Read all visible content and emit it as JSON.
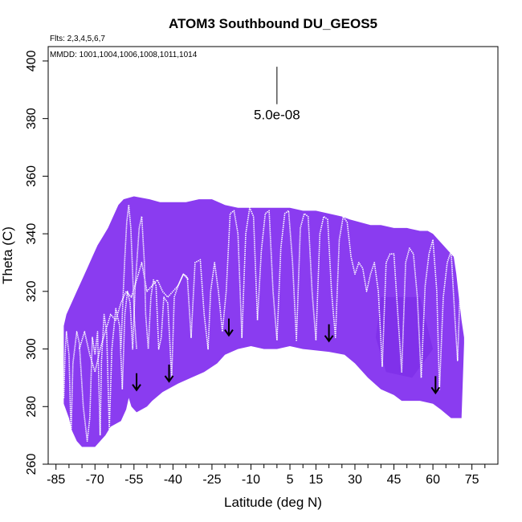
{
  "chart_data": {
    "type": "heatmap",
    "title": "ATOM3 Southbound DU_GEOS5",
    "flights_label": "Flts: 2,3,4,5,6,7",
    "dates_label": "MMDD: 1001,1004,1006,1008,1011,1014",
    "xlabel": "Latitude (deg N)",
    "ylabel": "Theta (C)",
    "xlim": [
      -88,
      85
    ],
    "ylim": [
      260,
      405
    ],
    "x_ticks": [
      -85,
      -70,
      -55,
      -40,
      -25,
      -10,
      5,
      15,
      30,
      45,
      60,
      75
    ],
    "x_minor_ticks": [
      -80,
      -75,
      -65,
      -60,
      -50,
      -45,
      -35,
      -30,
      -20,
      -15,
      -5,
      0,
      10,
      20,
      25,
      35,
      40,
      50,
      55,
      65,
      70,
      80
    ],
    "y_ticks": [
      260,
      280,
      300,
      320,
      340,
      360,
      380,
      400
    ],
    "scale_label": "5.0e-08",
    "scale_bar": {
      "x": 0,
      "y_top": 398,
      "y_bottom": 385
    },
    "colors": {
      "field": "#8a3cf0",
      "field_dark": "#7a2ae6",
      "track": "#ffffff",
      "arrow": "#000000"
    },
    "field_top": [
      [
        -82,
        308
      ],
      [
        -81,
        312
      ],
      [
        -79,
        316
      ],
      [
        -77,
        320
      ],
      [
        -75,
        324
      ],
      [
        -73,
        328
      ],
      [
        -71,
        332
      ],
      [
        -69,
        336
      ],
      [
        -67,
        339
      ],
      [
        -65,
        342
      ],
      [
        -63,
        346
      ],
      [
        -61,
        350
      ],
      [
        -59,
        352
      ],
      [
        -55,
        353
      ],
      [
        -49,
        352
      ],
      [
        -45,
        351
      ],
      [
        -40,
        351
      ],
      [
        -35,
        351
      ],
      [
        -30,
        352
      ],
      [
        -25,
        352
      ],
      [
        -20,
        350
      ],
      [
        -15,
        349
      ],
      [
        -10,
        349
      ],
      [
        -5,
        349
      ],
      [
        0,
        349
      ],
      [
        5,
        349
      ],
      [
        10,
        348
      ],
      [
        15,
        348
      ],
      [
        20,
        347
      ],
      [
        25,
        346
      ],
      [
        28,
        345
      ],
      [
        32,
        344
      ],
      [
        36,
        343
      ],
      [
        40,
        343
      ],
      [
        45,
        342
      ],
      [
        50,
        342
      ],
      [
        55,
        341
      ],
      [
        58,
        341
      ],
      [
        60,
        340
      ],
      [
        62,
        338
      ],
      [
        64,
        336
      ],
      [
        66,
        334
      ],
      [
        68,
        332
      ],
      [
        69,
        326
      ],
      [
        70,
        318
      ],
      [
        71,
        310
      ],
      [
        72,
        304
      ]
    ],
    "field_bottom": [
      [
        72,
        302
      ],
      [
        71,
        276
      ],
      [
        67,
        276
      ],
      [
        63,
        279
      ],
      [
        60,
        281
      ],
      [
        55,
        282
      ],
      [
        48,
        282
      ],
      [
        45,
        284
      ],
      [
        40,
        286
      ],
      [
        35,
        290
      ],
      [
        30,
        295
      ],
      [
        26,
        298
      ],
      [
        20,
        299
      ],
      [
        10,
        300
      ],
      [
        5,
        301
      ],
      [
        0,
        300
      ],
      [
        -5,
        300
      ],
      [
        -10,
        301
      ],
      [
        -15,
        300
      ],
      [
        -20,
        298
      ],
      [
        -23,
        295
      ],
      [
        -28,
        292
      ],
      [
        -33,
        290
      ],
      [
        -38,
        288
      ],
      [
        -44,
        285
      ],
      [
        -48,
        282
      ],
      [
        -50,
        280
      ],
      [
        -54,
        278
      ],
      [
        -56,
        280
      ],
      [
        -57,
        283
      ],
      [
        -58,
        279
      ],
      [
        -60,
        275
      ],
      [
        -64,
        273
      ],
      [
        -66,
        270
      ],
      [
        -70,
        266
      ],
      [
        -72,
        266
      ],
      [
        -75,
        266
      ],
      [
        -77,
        268
      ],
      [
        -79,
        272
      ],
      [
        -80,
        276
      ],
      [
        -82,
        281
      ],
      [
        -82,
        287
      ]
    ],
    "tracks": [
      [
        [
          -82,
          283
        ],
        [
          -81.5,
          298
        ],
        [
          -81,
          306
        ],
        [
          -80,
          298
        ],
        [
          -79.2,
          270
        ],
        [
          -78.5,
          295
        ],
        [
          -77,
          306
        ],
        [
          -76,
          302
        ],
        [
          -74.5,
          280
        ],
        [
          -73,
          268
        ],
        [
          -72,
          276
        ],
        [
          -71,
          304
        ],
        [
          -70,
          298
        ],
        [
          -69,
          306
        ],
        [
          -68,
          270
        ],
        [
          -67.5,
          296
        ],
        [
          -66.5,
          312
        ],
        [
          -65.5,
          306
        ],
        [
          -64.5,
          272
        ],
        [
          -63.5,
          300
        ],
        [
          -62,
          314
        ],
        [
          -60.5,
          308
        ],
        [
          -59.5,
          286
        ],
        [
          -58.5,
          312
        ],
        [
          -57.5,
          320
        ],
        [
          -56.5,
          316
        ],
        [
          -55.5,
          300
        ],
        [
          -54.5,
          322
        ],
        [
          -53,
          342
        ],
        [
          -52,
          346
        ],
        [
          -51,
          330
        ],
        [
          -50.5,
          312
        ],
        [
          -49.5,
          300
        ],
        [
          -48.5,
          318
        ],
        [
          -47.5,
          324
        ],
        [
          -46.5,
          322
        ],
        [
          -45.5,
          300
        ],
        [
          -44.5,
          304
        ],
        [
          -43.5,
          318
        ],
        [
          -42,
          316
        ],
        [
          -40.5,
          290
        ],
        [
          -39.5,
          318
        ],
        [
          -38,
          322
        ],
        [
          -36,
          326
        ],
        [
          -34.5,
          325
        ],
        [
          -33,
          304
        ],
        [
          -31.5,
          330
        ],
        [
          -29.5,
          331
        ],
        [
          -28,
          312
        ],
        [
          -26.5,
          300
        ],
        [
          -25.5,
          320
        ],
        [
          -24,
          330
        ],
        [
          -22.5,
          320
        ],
        [
          -21,
          306
        ],
        [
          -19.5,
          320
        ],
        [
          -18,
          347
        ],
        [
          -16.5,
          348
        ],
        [
          -15,
          340
        ],
        [
          -13.5,
          304
        ],
        [
          -12,
          340
        ],
        [
          -10.5,
          349
        ],
        [
          -9,
          346
        ],
        [
          -7.5,
          310
        ],
        [
          -6,
          334
        ],
        [
          -4.5,
          347
        ],
        [
          -3,
          348
        ],
        [
          -1.5,
          320
        ],
        [
          0,
          303
        ],
        [
          1.5,
          335
        ],
        [
          3,
          347
        ],
        [
          4.5,
          348
        ],
        [
          6,
          330
        ],
        [
          7.5,
          303
        ],
        [
          9,
          342
        ],
        [
          10.5,
          347
        ],
        [
          12,
          346
        ],
        [
          13.5,
          320
        ],
        [
          15,
          303
        ],
        [
          16.5,
          340
        ],
        [
          18,
          346
        ],
        [
          19.5,
          345
        ],
        [
          21,
          320
        ],
        [
          22.5,
          304
        ],
        [
          24,
          338
        ],
        [
          25.5,
          346
        ],
        [
          27,
          344
        ],
        [
          28.5,
          332
        ],
        [
          30,
          326
        ],
        [
          31.5,
          330
        ],
        [
          33,
          328
        ],
        [
          34.5,
          320
        ],
        [
          36,
          326
        ],
        [
          37.5,
          330
        ],
        [
          39,
          320
        ],
        [
          40.5,
          294
        ],
        [
          42,
          330
        ],
        [
          43.5,
          333
        ],
        [
          45,
          333
        ],
        [
          46.5,
          312
        ],
        [
          48,
          292
        ],
        [
          49.5,
          330
        ],
        [
          51,
          335
        ],
        [
          52.5,
          333
        ],
        [
          54,
          318
        ],
        [
          55.5,
          290
        ],
        [
          57,
          322
        ],
        [
          58.5,
          333
        ],
        [
          60,
          338
        ],
        [
          61.5,
          320
        ],
        [
          62.5,
          286
        ],
        [
          64,
          318
        ],
        [
          65.5,
          330
        ],
        [
          67,
          334
        ],
        [
          68.5,
          310
        ],
        [
          69.5,
          296
        ],
        [
          70.5,
          322
        ],
        [
          71.5,
          312
        ],
        [
          72.5,
          305
        ]
      ],
      [
        [
          -76,
          300
        ],
        [
          -74,
          306
        ],
        [
          -72,
          298
        ],
        [
          -70,
          292
        ],
        [
          -68,
          300
        ],
        [
          -66,
          306
        ],
        [
          -64,
          312
        ],
        [
          -62,
          310
        ],
        [
          -60,
          316
        ],
        [
          -58,
          320
        ],
        [
          -56,
          318
        ],
        [
          -54,
          324
        ],
        [
          -52,
          330
        ],
        [
          -50,
          320
        ],
        [
          -48,
          322
        ],
        [
          -46,
          324
        ],
        [
          -44,
          320
        ],
        [
          -42,
          318
        ],
        [
          -40,
          320
        ],
        [
          -38,
          322
        ],
        [
          -36,
          326
        ],
        [
          -34,
          324
        ]
      ],
      [
        [
          -60,
          300
        ],
        [
          -59.2,
          318
        ],
        [
          -58.5,
          332
        ],
        [
          -57.8,
          344
        ],
        [
          -57,
          350
        ],
        [
          -56.2,
          342
        ],
        [
          -55.5,
          326
        ],
        [
          -54.8,
          310
        ],
        [
          -54,
          300
        ]
      ]
    ],
    "arrows": [
      {
        "lat": -54,
        "theta": 286
      },
      {
        "lat": -41.5,
        "theta": 289
      },
      {
        "lat": -18.5,
        "theta": 305
      },
      {
        "lat": 20,
        "theta": 303
      },
      {
        "lat": 61,
        "theta": 285
      }
    ]
  }
}
